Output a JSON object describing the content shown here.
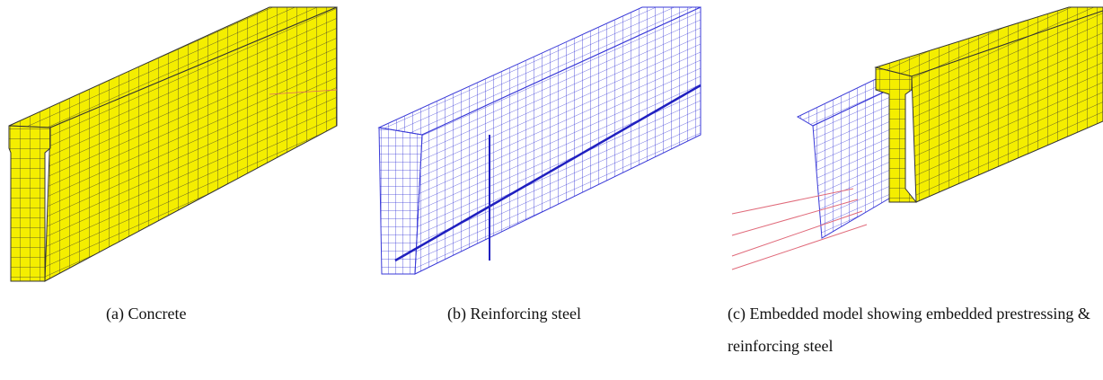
{
  "panels": [
    {
      "caption": "(a) Concrete"
    },
    {
      "caption": "(b) Reinforcing steel"
    },
    {
      "caption": "(c) Embedded model showing embedded prestressing & reinforcing steel"
    }
  ]
}
